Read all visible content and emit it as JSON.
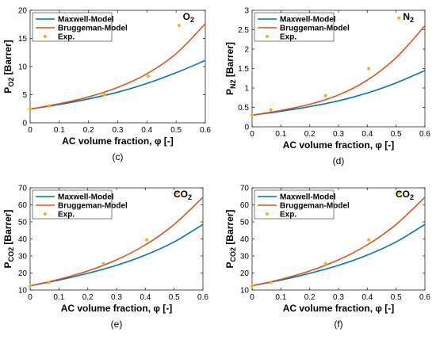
{
  "chart_data": [
    {
      "type": "line",
      "caption": "(c)",
      "gas": "O",
      "gas_sub": "2",
      "ylabel": "P",
      "ylabel_sub": "O2",
      "ylabel_unit": " [Barrer]",
      "xlabel": "AC volume fraction, φ [-]",
      "xlim": [
        0,
        0.6
      ],
      "ylim": [
        0,
        20
      ],
      "xticks": [
        0,
        0.1,
        0.2,
        0.3,
        0.4,
        0.5,
        0.6
      ],
      "yticks": [
        0,
        5,
        10,
        15,
        20
      ],
      "legend": "top-left",
      "series": [
        {
          "name": "Maxwell-Model",
          "color": "#0072BD",
          "kind": "line",
          "x": [
            0,
            0.1,
            0.2,
            0.3,
            0.4,
            0.5,
            0.6
          ],
          "y": [
            2.45,
            3.25,
            4.25,
            5.45,
            7.0,
            8.9,
            11.1
          ]
        },
        {
          "name": "Bruggeman-Model",
          "color": "#D95319",
          "kind": "line",
          "x": [
            0,
            0.1,
            0.2,
            0.3,
            0.4,
            0.5,
            0.6
          ],
          "y": [
            2.45,
            3.4,
            4.6,
            6.3,
            8.7,
            12.3,
            17.6
          ]
        },
        {
          "name": "Exp.",
          "color": "#EDB120",
          "kind": "scatter",
          "x": [
            0,
            0.065,
            0.255,
            0.405,
            0.51
          ],
          "y": [
            2.45,
            3.0,
            5.0,
            8.3,
            17.3
          ]
        }
      ]
    },
    {
      "type": "line",
      "caption": "(d)",
      "gas": "N",
      "gas_sub": "2",
      "ylabel": "P",
      "ylabel_sub": "N2",
      "ylabel_unit": " [Barrer]",
      "xlabel": "AC volume fraction, φ [-]",
      "xlim": [
        0,
        0.6
      ],
      "ylim": [
        0,
        3
      ],
      "xticks": [
        0,
        0.1,
        0.2,
        0.3,
        0.4,
        0.5,
        0.6
      ],
      "yticks": [
        0,
        0.5,
        1,
        1.5,
        2,
        2.5,
        3
      ],
      "legend": "top-left",
      "series": [
        {
          "name": "Maxwell-Model",
          "color": "#0072BD",
          "kind": "line",
          "x": [
            0,
            0.1,
            0.2,
            0.3,
            0.4,
            0.5,
            0.6
          ],
          "y": [
            0.3,
            0.4,
            0.52,
            0.67,
            0.87,
            1.13,
            1.45
          ]
        },
        {
          "name": "Bruggeman-Model",
          "color": "#D95319",
          "kind": "line",
          "x": [
            0,
            0.1,
            0.2,
            0.3,
            0.4,
            0.5,
            0.6
          ],
          "y": [
            0.3,
            0.42,
            0.58,
            0.82,
            1.2,
            1.78,
            2.6
          ]
        },
        {
          "name": "Exp.",
          "color": "#EDB120",
          "kind": "scatter",
          "x": [
            0,
            0.065,
            0.255,
            0.405,
            0.51
          ],
          "y": [
            0.3,
            0.44,
            0.8,
            1.5,
            2.8
          ]
        }
      ]
    },
    {
      "type": "line",
      "caption": "(e)",
      "gas": "CO",
      "gas_sub": "2",
      "ylabel": "P",
      "ylabel_sub": "CO2",
      "ylabel_unit": " [Barrer]",
      "xlabel": "AC volume fraction, φ [-]",
      "xlim": [
        0,
        0.6
      ],
      "ylim": [
        10,
        70
      ],
      "xticks": [
        0,
        0.1,
        0.2,
        0.3,
        0.4,
        0.5,
        0.6
      ],
      "yticks": [
        10,
        20,
        30,
        40,
        50,
        60,
        70
      ],
      "legend": "top-left",
      "series": [
        {
          "name": "Maxwell-Model",
          "color": "#0072BD",
          "kind": "line",
          "x": [
            0,
            0.1,
            0.2,
            0.3,
            0.4,
            0.5,
            0.6
          ],
          "y": [
            12.5,
            15.8,
            19.8,
            24.5,
            30.5,
            38.3,
            48.5
          ]
        },
        {
          "name": "Bruggeman-Model",
          "color": "#D95319",
          "kind": "line",
          "x": [
            0,
            0.1,
            0.2,
            0.3,
            0.4,
            0.5,
            0.6
          ],
          "y": [
            12.5,
            16.3,
            21.2,
            27.7,
            36.5,
            48.5,
            64.5
          ]
        },
        {
          "name": "Exp.",
          "color": "#EDB120",
          "kind": "scatter",
          "x": [
            0,
            0.065,
            0.255,
            0.405,
            0.51
          ],
          "y": [
            12.5,
            14.5,
            25.5,
            39.5,
            67.0
          ]
        }
      ]
    },
    {
      "type": "line",
      "caption": "(f)",
      "gas": "CO",
      "gas_sub": "2",
      "ylabel": "P",
      "ylabel_sub": "CO2",
      "ylabel_unit": " [Barrer]",
      "xlabel": "AC volume fraction, φ [-]",
      "xlim": [
        0,
        0.6
      ],
      "ylim": [
        10,
        70
      ],
      "xticks": [
        0,
        0.1,
        0.2,
        0.3,
        0.4,
        0.5,
        0.6
      ],
      "yticks": [
        10,
        20,
        30,
        40,
        50,
        60,
        70
      ],
      "legend": "top-left",
      "series": [
        {
          "name": "Maxwell-Model",
          "color": "#0072BD",
          "kind": "line",
          "x": [
            0,
            0.1,
            0.2,
            0.3,
            0.4,
            0.5,
            0.6
          ],
          "y": [
            12.5,
            15.8,
            19.8,
            24.5,
            30.5,
            38.3,
            48.5
          ]
        },
        {
          "name": "Bruggeman-Model",
          "color": "#D95319",
          "kind": "line",
          "x": [
            0,
            0.1,
            0.2,
            0.3,
            0.4,
            0.5,
            0.6
          ],
          "y": [
            12.5,
            16.3,
            21.2,
            27.7,
            36.5,
            48.5,
            64.5
          ]
        },
        {
          "name": "Exp.",
          "color": "#EDB120",
          "kind": "scatter",
          "x": [
            0,
            0.065,
            0.255,
            0.405,
            0.51
          ],
          "y": [
            12.5,
            14.5,
            25.5,
            39.5,
            67.0
          ]
        }
      ]
    }
  ]
}
